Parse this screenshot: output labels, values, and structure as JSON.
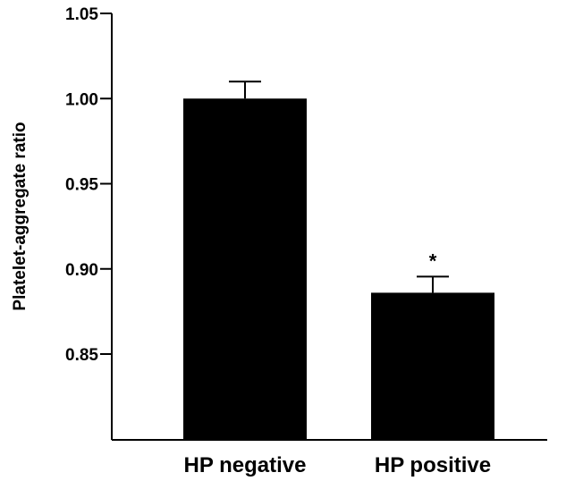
{
  "chart_data": {
    "type": "bar",
    "title": "",
    "xlabel": "",
    "ylabel": "Platelet-aggregate ratio",
    "categories": [
      "HP negative",
      "HP positive"
    ],
    "values": [
      1.0,
      0.886
    ],
    "error": [
      0.01,
      0.0095
    ],
    "annotations": [
      "",
      "*"
    ],
    "ylim": [
      0.8,
      1.05
    ],
    "yticks": [
      0.85,
      0.9,
      0.95,
      1.0,
      1.05
    ],
    "ytick_labels": [
      "0.85",
      "0.90",
      "0.95",
      "1.00",
      "1.05"
    ],
    "grid": false,
    "legend": "none",
    "bar_color": "#000000"
  }
}
